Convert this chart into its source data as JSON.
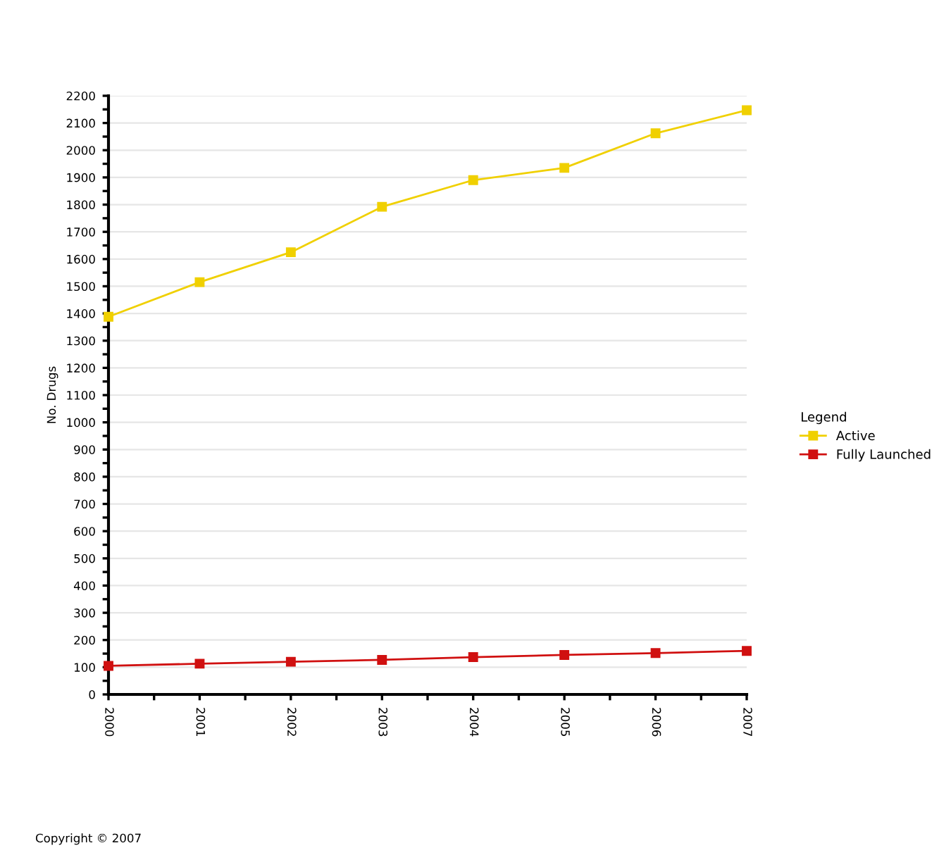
{
  "chart_data": {
    "type": "line",
    "ylabel": "No. Drugs",
    "legend_title": "Legend",
    "x": [
      2000,
      2001,
      2002,
      2003,
      2004,
      2005,
      2006,
      2007
    ],
    "series": [
      {
        "name": "Active",
        "color": "#f0d000",
        "values": [
          1388,
          1515,
          1625,
          1792,
          1890,
          1935,
          2062,
          2147
        ]
      },
      {
        "name": "Fully Launched",
        "color": "#d01010",
        "values": [
          105,
          113,
          120,
          127,
          137,
          145,
          152,
          160
        ]
      }
    ],
    "xlim": [
      2000,
      2007
    ],
    "xticks": [
      2000,
      2001,
      2002,
      2003,
      2004,
      2005,
      2006,
      2007
    ],
    "ylim": [
      0,
      2200
    ],
    "yticks": [
      0,
      100,
      200,
      300,
      400,
      500,
      600,
      700,
      800,
      900,
      1000,
      1100,
      1200,
      1300,
      1400,
      1500,
      1600,
      1700,
      1800,
      1900,
      2000,
      2100,
      2200
    ],
    "grid": "y",
    "legend": "right",
    "marker": "square",
    "line_style": "solid",
    "annotations": [
      "Copyright © 2007"
    ]
  }
}
